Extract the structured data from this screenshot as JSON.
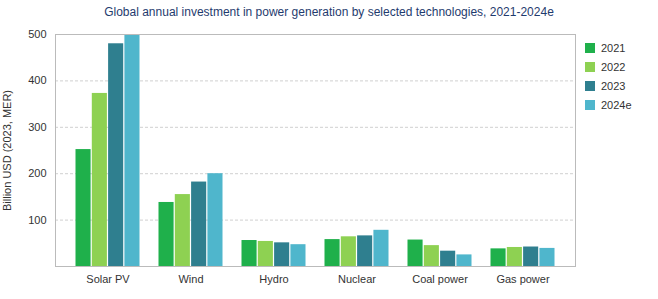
{
  "chart_data": {
    "type": "bar",
    "title": "Global annual investment in power generation by selected technologies, 2021-2024e",
    "y_label": "Billion USD (2023, MER)",
    "categories": [
      "Solar PV",
      "Wind",
      "Hydro",
      "Nuclear",
      "Coal power",
      "Gas power"
    ],
    "series": [
      {
        "name": "2021",
        "color": "#1fb04b",
        "values": [
          252,
          138,
          56,
          58,
          57,
          38
        ]
      },
      {
        "name": "2022",
        "color": "#8ed152",
        "values": [
          373,
          155,
          54,
          64,
          45,
          41
        ]
      },
      {
        "name": "2023",
        "color": "#2f7f8f",
        "values": [
          480,
          182,
          51,
          66,
          33,
          42
        ]
      },
      {
        "name": "2024e",
        "color": "#4fb6cc",
        "values": [
          500,
          200,
          47,
          78,
          25,
          39
        ]
      }
    ],
    "ylim": [
      0,
      500
    ],
    "yticks": [
      100,
      200,
      300,
      400,
      500
    ],
    "grid": true,
    "legend": "right"
  }
}
